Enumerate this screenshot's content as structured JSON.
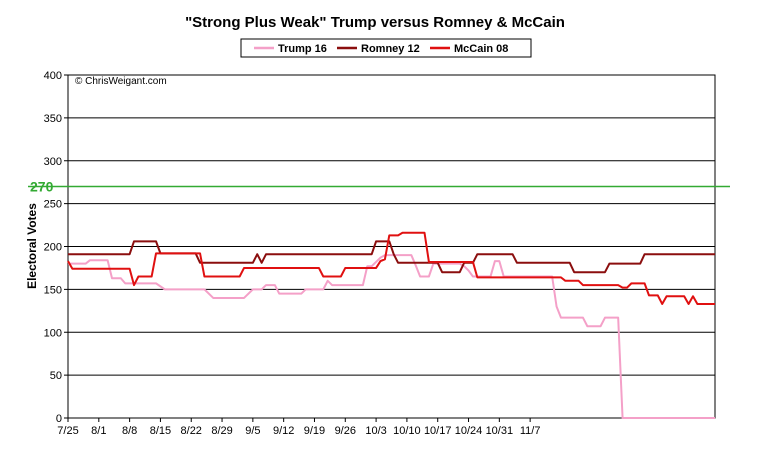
{
  "chart_data": {
    "type": "line",
    "title": "\"Strong Plus Weak\" Trump versus Romney & McCain",
    "ylabel": "Electoral Votes",
    "xlabel": "",
    "ylim": [
      0,
      400
    ],
    "yticks": [
      0,
      50,
      100,
      150,
      200,
      250,
      300,
      350,
      400
    ],
    "xticks": [
      "7/25",
      "8/1",
      "8/8",
      "8/15",
      "8/22",
      "8/29",
      "9/5",
      "9/12",
      "9/19",
      "9/26",
      "10/3",
      "10/10",
      "10/17",
      "10/24",
      "10/31",
      "11/7"
    ],
    "grid": "horizontal",
    "legend_position": "top",
    "copyright": "© ChrisWeigant.com",
    "reference_line": {
      "value": 270,
      "label": "270",
      "color": "#33aa33"
    },
    "series": [
      {
        "name": "Trump 16",
        "color": "#f4a0c8",
        "points": [
          [
            0,
            180
          ],
          [
            2,
            180
          ],
          [
            4,
            180
          ],
          [
            5,
            184
          ],
          [
            9,
            184
          ],
          [
            10,
            163
          ],
          [
            12,
            163
          ],
          [
            13,
            157
          ],
          [
            20,
            157
          ],
          [
            22,
            150
          ],
          [
            31,
            150
          ],
          [
            33,
            140
          ],
          [
            40,
            140
          ],
          [
            42,
            150
          ],
          [
            44,
            150
          ],
          [
            45,
            155
          ],
          [
            47,
            155
          ],
          [
            48,
            145
          ],
          [
            53,
            145
          ],
          [
            54,
            150
          ],
          [
            58,
            150
          ],
          [
            59,
            160
          ],
          [
            60,
            155
          ],
          [
            67,
            155
          ],
          [
            68,
            177
          ],
          [
            69,
            177
          ],
          [
            71,
            187
          ],
          [
            72,
            190
          ],
          [
            78,
            190
          ],
          [
            79,
            178
          ],
          [
            80,
            165
          ],
          [
            82,
            165
          ],
          [
            83,
            180
          ],
          [
            89,
            180
          ],
          [
            90,
            177
          ],
          [
            91,
            172
          ],
          [
            92,
            165
          ],
          [
            96,
            165
          ],
          [
            97,
            183
          ],
          [
            98,
            183
          ],
          [
            99,
            165
          ],
          [
            110,
            165
          ],
          [
            111,
            130
          ],
          [
            112,
            117
          ],
          [
            117,
            117
          ],
          [
            118,
            107
          ],
          [
            121,
            107
          ],
          [
            122,
            117
          ],
          [
            125,
            117
          ],
          [
            126,
            0
          ],
          [
            147,
            0
          ]
        ]
      },
      {
        "name": "Romney 12",
        "color": "#8b0e0e",
        "points": [
          [
            0,
            191
          ],
          [
            14,
            191
          ],
          [
            15,
            206
          ],
          [
            20,
            206
          ],
          [
            21,
            192
          ],
          [
            29,
            192
          ],
          [
            30,
            181
          ],
          [
            42,
            181
          ],
          [
            43,
            191
          ],
          [
            44,
            181
          ],
          [
            45,
            191
          ],
          [
            69,
            191
          ],
          [
            70,
            206
          ],
          [
            73,
            206
          ],
          [
            74,
            191
          ],
          [
            75,
            181
          ],
          [
            84,
            181
          ],
          [
            85,
            170
          ],
          [
            89,
            170
          ],
          [
            90,
            181
          ],
          [
            92,
            181
          ],
          [
            93,
            191
          ],
          [
            101,
            191
          ],
          [
            102,
            181
          ],
          [
            114,
            181
          ],
          [
            115,
            170
          ],
          [
            122,
            170
          ],
          [
            123,
            180
          ],
          [
            130,
            180
          ],
          [
            131,
            191
          ],
          [
            147,
            191
          ]
        ]
      },
      {
        "name": "McCain 08",
        "color": "#e01010",
        "points": [
          [
            0,
            183
          ],
          [
            1,
            174
          ],
          [
            14,
            174
          ],
          [
            15,
            155
          ],
          [
            16,
            165
          ],
          [
            19,
            165
          ],
          [
            20,
            192
          ],
          [
            30,
            192
          ],
          [
            31,
            165
          ],
          [
            39,
            165
          ],
          [
            40,
            175
          ],
          [
            57,
            175
          ],
          [
            58,
            165
          ],
          [
            62,
            165
          ],
          [
            63,
            175
          ],
          [
            70,
            175
          ],
          [
            71,
            183
          ],
          [
            72,
            185
          ],
          [
            73,
            213
          ],
          [
            75,
            213
          ],
          [
            76,
            216
          ],
          [
            81,
            216
          ],
          [
            82,
            182
          ],
          [
            92,
            182
          ],
          [
            93,
            164
          ],
          [
            112,
            164
          ],
          [
            113,
            160
          ],
          [
            116,
            160
          ],
          [
            117,
            155
          ],
          [
            125,
            155
          ],
          [
            126,
            152
          ],
          [
            127,
            152
          ],
          [
            128,
            157
          ],
          [
            131,
            157
          ],
          [
            132,
            143
          ],
          [
            134,
            143
          ],
          [
            135,
            133
          ],
          [
            136,
            142
          ],
          [
            140,
            142
          ],
          [
            141,
            133
          ],
          [
            142,
            142
          ],
          [
            143,
            133
          ],
          [
            147,
            133
          ]
        ]
      }
    ]
  }
}
